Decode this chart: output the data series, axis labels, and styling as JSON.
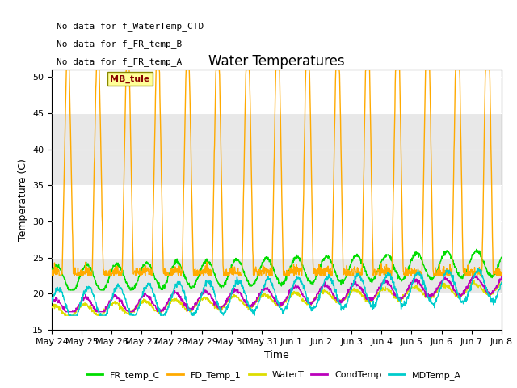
{
  "title": "Water Temperatures",
  "xlabel": "Time",
  "ylabel": "Temperature (C)",
  "ylim": [
    15,
    51
  ],
  "yticks": [
    15,
    20,
    25,
    30,
    35,
    40,
    45,
    50
  ],
  "date_labels": [
    "May 24",
    "May 25",
    "May 26",
    "May 27",
    "May 28",
    "May 29",
    "May 30",
    "May 31",
    "Jun 1",
    "Jun 2",
    "Jun 3",
    "Jun 4",
    "Jun 5",
    "Jun 6",
    "Jun 7",
    "Jun 8"
  ],
  "no_data_texts": [
    "No data for f_FR_temp_A",
    "No data for f_FR_temp_B",
    "No data for f_WaterTemp_CTD"
  ],
  "mb_tule_label": "MB_tule",
  "legend_entries": [
    {
      "label": "FR_temp_C",
      "color": "#00dd00"
    },
    {
      "label": "FD_Temp_1",
      "color": "#ffaa00"
    },
    {
      "label": "WaterT",
      "color": "#dddd00"
    },
    {
      "label": "CondTemp",
      "color": "#bb00bb"
    },
    {
      "label": "MDTemp_A",
      "color": "#00cccc"
    }
  ],
  "band_color": "#e8e8e8",
  "band_ranges": [
    [
      20,
      25
    ],
    [
      35,
      45
    ]
  ],
  "title_fontsize": 12,
  "axis_label_fontsize": 9,
  "tick_fontsize": 8
}
